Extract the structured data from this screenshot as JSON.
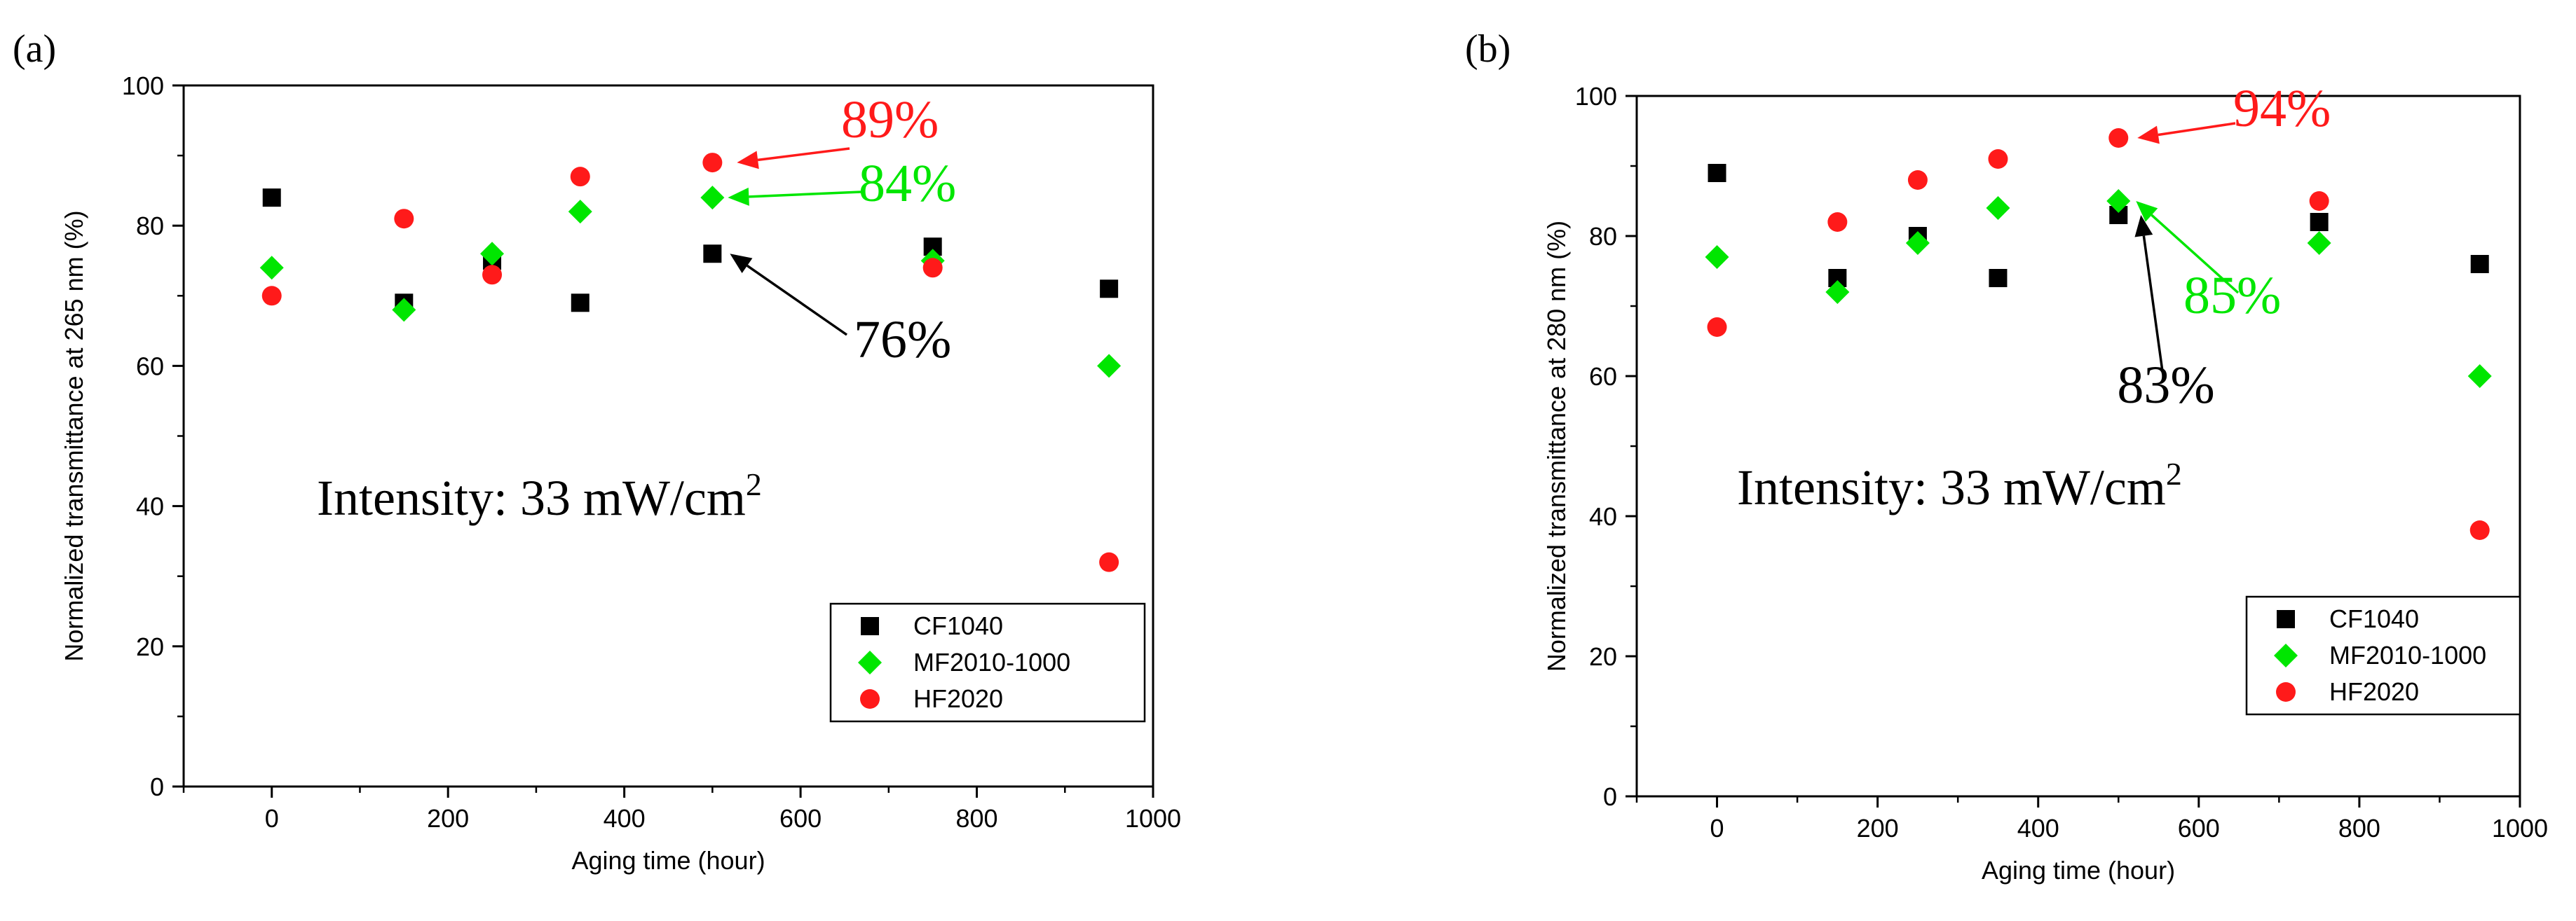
{
  "chart_data": [
    {
      "panel_label": "(a)",
      "type": "scatter",
      "xlabel": "Aging time (hour)",
      "ylabel": "Normalized transmittance at 265 nm (%)",
      "xlim": [
        -100,
        1000
      ],
      "ylim": [
        0,
        100
      ],
      "xticks": [
        0,
        200,
        400,
        600,
        800,
        1000
      ],
      "yticks": [
        0,
        20,
        40,
        60,
        80,
        100
      ],
      "xtick_labels": [
        "0",
        "200",
        "400",
        "600",
        "800",
        "1000"
      ],
      "ytick_labels": [
        "0",
        "20",
        "40",
        "60",
        "80",
        "100"
      ],
      "intensity_label": "Intensity: 33 mW/cm",
      "intensity_superscript": "2",
      "legend_position": "bottom-right",
      "series": [
        {
          "name": "CF1040",
          "marker": "square",
          "color": "#000000",
          "x": [
            0,
            150,
            250,
            350,
            500,
            750,
            950
          ],
          "y": [
            84,
            69,
            75,
            69,
            76,
            77,
            71
          ]
        },
        {
          "name": "MF2010-1000",
          "marker": "diamond",
          "color": "#00e600",
          "x": [
            0,
            150,
            250,
            350,
            500,
            750,
            950
          ],
          "y": [
            74,
            68,
            76,
            82,
            84,
            75,
            60
          ]
        },
        {
          "name": "HF2020",
          "marker": "circle",
          "color": "#ff1a1a",
          "x": [
            0,
            150,
            250,
            350,
            500,
            750,
            950
          ],
          "y": [
            70,
            81,
            73,
            87,
            89,
            74,
            32
          ]
        }
      ],
      "annotations": [
        {
          "text": "89%",
          "color": "#ff1a1a",
          "point": [
            500,
            89
          ]
        },
        {
          "text": "84%",
          "color": "#00e600",
          "point": [
            500,
            84
          ]
        },
        {
          "text": "76%",
          "color": "#000000",
          "point": [
            500,
            76
          ]
        }
      ]
    },
    {
      "panel_label": "(b)",
      "type": "scatter",
      "xlabel": "Aging time (hour)",
      "ylabel": "Normalized transmittance at 280 nm (%)",
      "xlim": [
        -100,
        1000
      ],
      "ylim": [
        0,
        100
      ],
      "xticks": [
        0,
        200,
        400,
        600,
        800,
        1000
      ],
      "yticks": [
        0,
        20,
        40,
        60,
        80,
        100
      ],
      "xtick_labels": [
        "0",
        "200",
        "400",
        "600",
        "800",
        "1000"
      ],
      "ytick_labels": [
        "0",
        "20",
        "40",
        "60",
        "80",
        "100"
      ],
      "intensity_label": "Intensity: 33 mW/cm",
      "intensity_superscript": "2",
      "legend_position": "bottom-right",
      "series": [
        {
          "name": "CF1040",
          "marker": "square",
          "color": "#000000",
          "x": [
            0,
            150,
            250,
            350,
            500,
            750,
            950
          ],
          "y": [
            89,
            74,
            80,
            74,
            83,
            82,
            76
          ]
        },
        {
          "name": "MF2010-1000",
          "marker": "diamond",
          "color": "#00e600",
          "x": [
            0,
            150,
            250,
            350,
            500,
            750,
            950
          ],
          "y": [
            77,
            72,
            79,
            84,
            85,
            79,
            60
          ]
        },
        {
          "name": "HF2020",
          "marker": "circle",
          "color": "#ff1a1a",
          "x": [
            0,
            150,
            250,
            350,
            500,
            750,
            950
          ],
          "y": [
            67,
            82,
            88,
            91,
            94,
            85,
            38
          ]
        }
      ],
      "annotations": [
        {
          "text": "94%",
          "color": "#ff1a1a",
          "point": [
            500,
            94
          ]
        },
        {
          "text": "85%",
          "color": "#00e600",
          "point": [
            500,
            85
          ]
        },
        {
          "text": "83%",
          "color": "#000000",
          "point": [
            500,
            83
          ]
        }
      ]
    }
  ]
}
